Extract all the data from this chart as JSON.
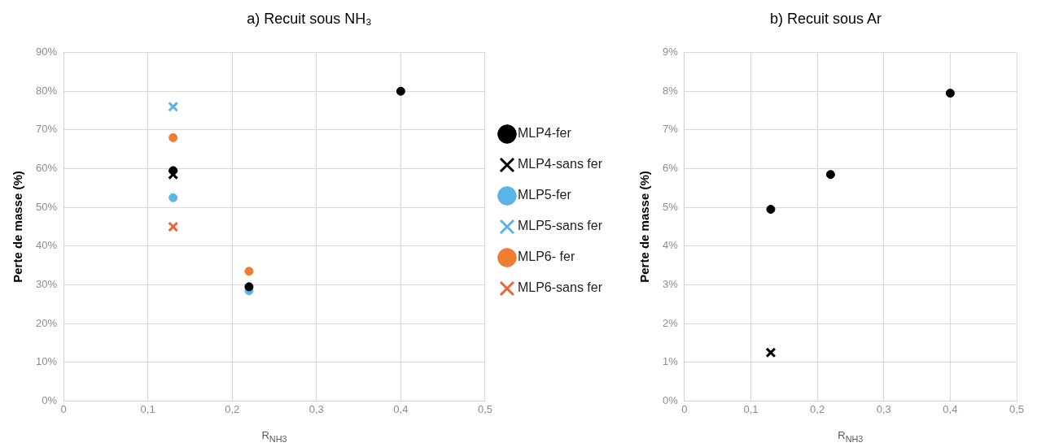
{
  "chart_data": [
    {
      "type": "scatter",
      "title": "a) Recuit sous NH₃",
      "xlabel": "R$_{NH3}$",
      "ylabel": "Perte de masse (%)",
      "xlim": [
        0,
        0.5
      ],
      "xticks": [
        {
          "value": 0,
          "label": "0"
        },
        {
          "value": 0.1,
          "label": "0,1"
        },
        {
          "value": 0.2,
          "label": "0,2"
        },
        {
          "value": 0.3,
          "label": "0,3"
        },
        {
          "value": 0.4,
          "label": "0,4"
        },
        {
          "value": 0.5,
          "label": "0,5"
        }
      ],
      "ylim": [
        0,
        90
      ],
      "yticks": [
        {
          "value": 0,
          "label": "0%"
        },
        {
          "value": 10,
          "label": "10%"
        },
        {
          "value": 20,
          "label": "20%"
        },
        {
          "value": 30,
          "label": "30%"
        },
        {
          "value": 40,
          "label": "40%"
        },
        {
          "value": 50,
          "label": "50%"
        },
        {
          "value": 60,
          "label": "60%"
        },
        {
          "value": 70,
          "label": "70%"
        },
        {
          "value": 80,
          "label": "80%"
        },
        {
          "value": 90,
          "label": "90%"
        }
      ],
      "grid": true,
      "legend": "right",
      "series": [
        {
          "name": "MLP4-fer",
          "color": "#000000",
          "marker": "circle",
          "x": [
            0.13,
            0.22,
            0.4
          ],
          "values": [
            59.5,
            29.5,
            80
          ]
        },
        {
          "name": "MLP4-sans fer",
          "color": "#000000",
          "marker": "cross",
          "x": [
            0.13
          ],
          "values": [
            58.5
          ]
        },
        {
          "name": "MLP5-fer",
          "color": "#5ab4e8",
          "marker": "circle",
          "x": [
            0.13,
            0.22
          ],
          "values": [
            52.5,
            28.5
          ]
        },
        {
          "name": "MLP5-sans fer",
          "color": "#5ab4e8",
          "marker": "cross",
          "x": [
            0.13
          ],
          "values": [
            76
          ]
        },
        {
          "name": "MLP6- fer",
          "color": "#ed7d31",
          "marker": "circle",
          "x": [
            0.13,
            0.22
          ],
          "values": [
            68,
            33.5
          ]
        },
        {
          "name": "MLP6-sans fer",
          "color": "#f0603a",
          "marker": "cross",
          "x": [
            0.13
          ],
          "values": [
            45
          ]
        }
      ]
    },
    {
      "type": "scatter",
      "title": "b) Recuit sous Ar",
      "xlabel": "R$_{NH3}$",
      "ylabel": "Perte de masse (%)",
      "xlim": [
        0,
        0.5
      ],
      "xticks": [
        {
          "value": 0,
          "label": "0"
        },
        {
          "value": 0.1,
          "label": "0,1"
        },
        {
          "value": 0.2,
          "label": "0,2"
        },
        {
          "value": 0.3,
          "label": "0,3"
        },
        {
          "value": 0.4,
          "label": "0,4"
        },
        {
          "value": 0.5,
          "label": "0,5"
        }
      ],
      "ylim": [
        0,
        9
      ],
      "yticks": [
        {
          "value": 0,
          "label": "0%"
        },
        {
          "value": 1,
          "label": "1%"
        },
        {
          "value": 2,
          "label": "2%"
        },
        {
          "value": 3,
          "label": "3%"
        },
        {
          "value": 4,
          "label": "4%"
        },
        {
          "value": 5,
          "label": "5%"
        },
        {
          "value": 6,
          "label": "6%"
        },
        {
          "value": 7,
          "label": "7%"
        },
        {
          "value": 8,
          "label": "8%"
        },
        {
          "value": 9,
          "label": "9%"
        }
      ],
      "grid": true,
      "series": [
        {
          "color": "#000000",
          "marker": "circle",
          "x": [
            0.13,
            0.22,
            0.4
          ],
          "values": [
            4.95,
            5.85,
            7.95
          ]
        },
        {
          "color": "#000000",
          "marker": "cross",
          "x": [
            0.13
          ],
          "values": [
            1.25
          ]
        }
      ]
    }
  ]
}
